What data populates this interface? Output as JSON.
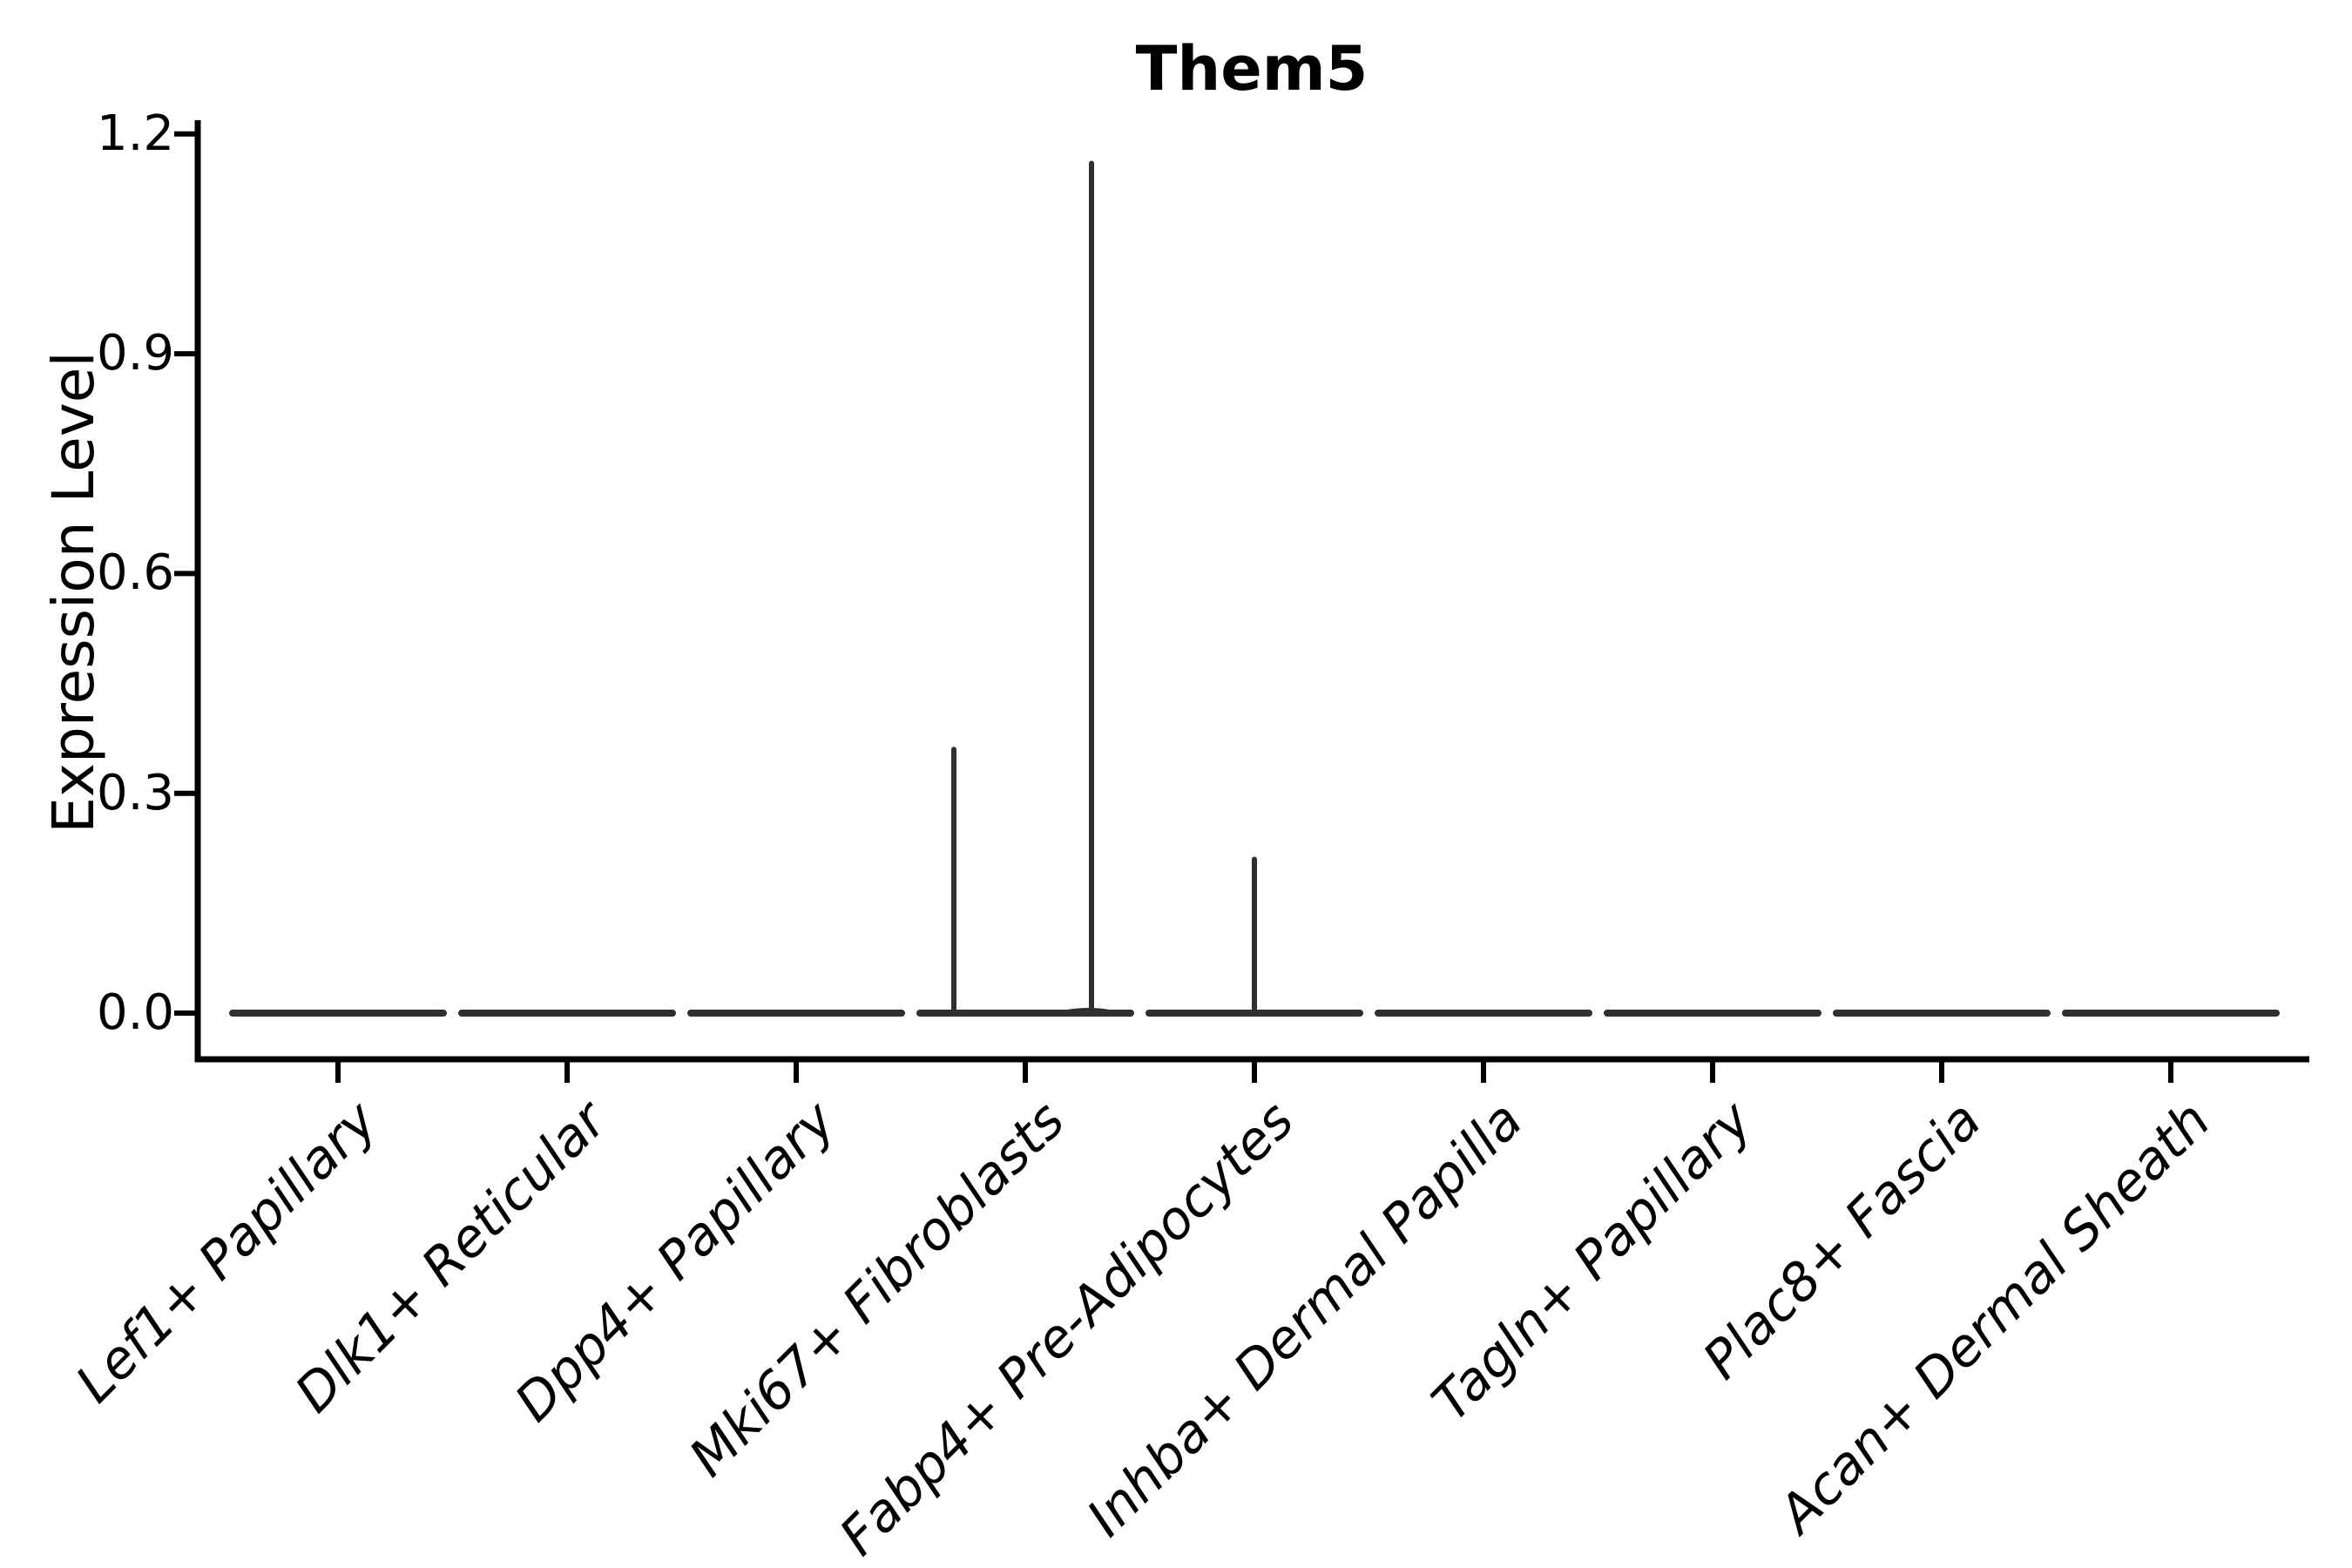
{
  "chart_data": {
    "type": "violin",
    "title": "Them5",
    "ylabel": "Expression Level",
    "xlabel": "",
    "grid": false,
    "legend": null,
    "yticks": [
      0.0,
      0.3,
      0.6,
      0.9,
      1.2
    ],
    "yticklabels": [
      "0.0",
      "0.3",
      "0.6",
      "0.9",
      "1.2"
    ],
    "ylim": [
      -0.063,
      1.219
    ],
    "categories": [
      "Lef1+ Papillary",
      "Dlk1+ Reticular",
      "Dpp4+ Papillary",
      "Mki67+ Fibroblasts",
      "Fabp4+ Pre-Adipocytes",
      "Inhba+ Dermal Papilla",
      "Tagln+ Papillary",
      "Plac8+ Fascia",
      "Acan+ Dermal Sheath"
    ],
    "violins": [
      {
        "category": "Lef1+ Papillary",
        "baseline_value": 0.0,
        "spikes": []
      },
      {
        "category": "Dlk1+ Reticular",
        "baseline_value": 0.0,
        "spikes": []
      },
      {
        "category": "Dpp4+ Papillary",
        "baseline_value": 0.0,
        "spikes": []
      },
      {
        "category": "Mki67+ Fibroblasts",
        "baseline_value": 0.0,
        "spikes": [
          {
            "slot_offset": -0.31,
            "value": 0.36,
            "bulge": false
          },
          {
            "slot_offset": 0.29,
            "value": 1.16,
            "bulge": true
          }
        ]
      },
      {
        "category": "Fabp4+ Pre-Adipocytes",
        "baseline_value": 0.0,
        "spikes": [
          {
            "slot_offset": 0.0,
            "value": 0.21,
            "bulge": false
          }
        ]
      },
      {
        "category": "Inhba+ Dermal Papilla",
        "baseline_value": 0.0,
        "spikes": []
      },
      {
        "category": "Tagln+ Papillary",
        "baseline_value": 0.0,
        "spikes": []
      },
      {
        "category": "Plac8+ Fascia",
        "baseline_value": 0.0,
        "spikes": []
      },
      {
        "category": "Acan+ Dermal Sheath",
        "baseline_value": 0.0,
        "spikes": []
      }
    ],
    "colors": {
      "violin_stroke": "#2f2f2f",
      "axis": "#000000",
      "background": "#ffffff"
    }
  }
}
